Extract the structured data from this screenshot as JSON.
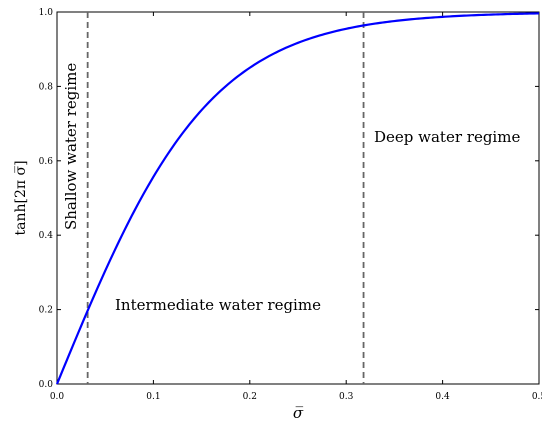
{
  "chart_data": {
    "type": "line",
    "xlabel": "σ̅",
    "ylabel": "tanh[2π σ̅]",
    "xlim": [
      0.0,
      0.5
    ],
    "ylim": [
      0.0,
      1.0
    ],
    "xticks": [
      "0.0",
      "0.1",
      "0.2",
      "0.3",
      "0.4",
      "0.5"
    ],
    "yticks": [
      "0.0",
      "0.2",
      "0.4",
      "0.6",
      "0.8",
      "1.0"
    ],
    "grid": false,
    "series": [
      {
        "function": "tanh(2*pi*x)",
        "color": "#0000ff",
        "x": [
          0.0,
          0.025,
          0.05,
          0.075,
          0.1,
          0.125,
          0.15,
          0.175,
          0.2,
          0.225,
          0.25,
          0.275,
          0.3,
          0.325,
          0.35,
          0.375,
          0.4,
          0.425,
          0.45,
          0.475,
          0.5
        ],
        "y": [
          0.0,
          0.156,
          0.304,
          0.441,
          0.562,
          0.666,
          0.752,
          0.821,
          0.874,
          0.912,
          0.941,
          0.958,
          0.971,
          0.979,
          0.987,
          0.99,
          0.993,
          0.995,
          0.997,
          0.998,
          0.998
        ]
      }
    ],
    "vlines": [
      {
        "x": 0.0318,
        "style": "dashed",
        "color": "#666666"
      },
      {
        "x": 0.318,
        "style": "dashed",
        "color": "#666666"
      }
    ],
    "annotations": {
      "shallow": "Shallow water regime",
      "intermediate": "Intermediate water regime",
      "deep": "Deep water regime"
    }
  }
}
